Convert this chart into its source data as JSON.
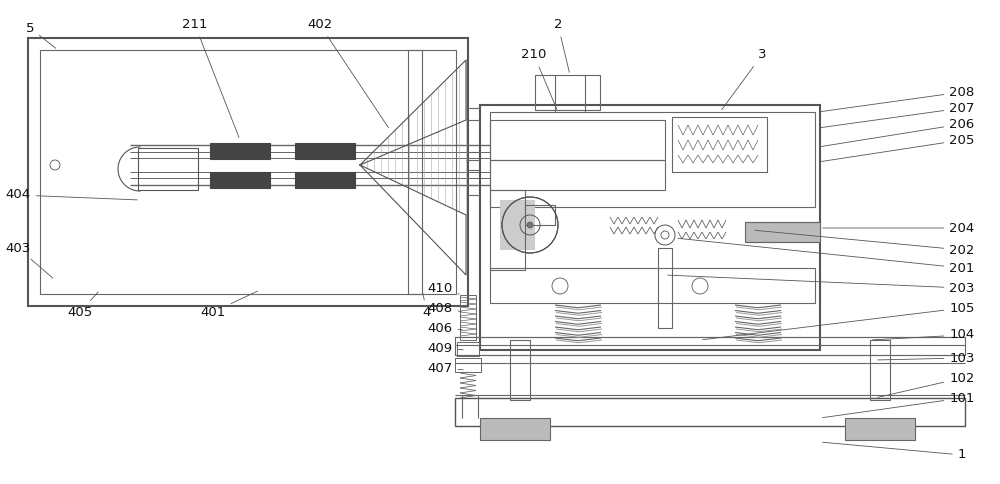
{
  "fig_width": 10.0,
  "fig_height": 4.84,
  "dpi": 100,
  "bg_color": "#ffffff",
  "lc": "#666666",
  "dark": "#444444",
  "lgray": "#bbbbbb",
  "mgray": "#999999"
}
